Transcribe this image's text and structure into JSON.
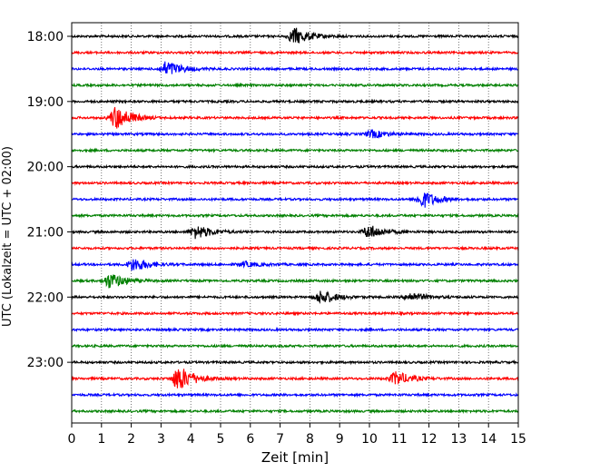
{
  "chart_data": {
    "type": "line",
    "title": "",
    "xlabel": "Zeit  [min]",
    "ylabel": "UTC (Lokalzeit = UTC + 02:00)",
    "xlim": [
      0,
      15
    ],
    "x_ticks": [
      "0",
      "1",
      "2",
      "3",
      "4",
      "5",
      "6",
      "7",
      "8",
      "9",
      "10",
      "11",
      "12",
      "13",
      "14",
      "15"
    ],
    "y_ticks": [
      "18:00",
      "19:00",
      "20:00",
      "21:00",
      "22:00",
      "23:00"
    ],
    "grid": "vertical dotted",
    "trace_interval_min": 15,
    "trace_colors": [
      "#000000",
      "#ff0000",
      "#0000ff",
      "#008000"
    ],
    "traces": [
      {
        "start": "18:00",
        "color": "#000000",
        "bursts": [
          {
            "t": 7.5,
            "amp": 1.0
          }
        ]
      },
      {
        "start": "18:15",
        "color": "#ff0000",
        "bursts": []
      },
      {
        "start": "18:30",
        "color": "#0000ff",
        "bursts": [
          {
            "t": 3.2,
            "amp": 0.9
          }
        ]
      },
      {
        "start": "18:45",
        "color": "#008000",
        "bursts": []
      },
      {
        "start": "19:00",
        "color": "#000000",
        "bursts": []
      },
      {
        "start": "19:15",
        "color": "#ff0000",
        "bursts": [
          {
            "t": 1.5,
            "amp": 1.4
          }
        ]
      },
      {
        "start": "19:30",
        "color": "#0000ff",
        "bursts": [
          {
            "t": 10.1,
            "amp": 0.45
          }
        ]
      },
      {
        "start": "19:45",
        "color": "#008000",
        "bursts": []
      },
      {
        "start": "20:00",
        "color": "#000000",
        "bursts": []
      },
      {
        "start": "20:15",
        "color": "#ff0000",
        "bursts": []
      },
      {
        "start": "20:30",
        "color": "#0000ff",
        "bursts": [
          {
            "t": 11.8,
            "amp": 1.0
          }
        ]
      },
      {
        "start": "20:45",
        "color": "#008000",
        "bursts": []
      },
      {
        "start": "21:00",
        "color": "#000000",
        "bursts": [
          {
            "t": 4.2,
            "amp": 0.8
          },
          {
            "t": 10.0,
            "amp": 0.8
          }
        ]
      },
      {
        "start": "21:15",
        "color": "#ff0000",
        "bursts": []
      },
      {
        "start": "21:30",
        "color": "#0000ff",
        "bursts": [
          {
            "t": 2.1,
            "amp": 0.8
          },
          {
            "t": 5.8,
            "amp": 0.3
          }
        ]
      },
      {
        "start": "21:45",
        "color": "#008000",
        "bursts": [
          {
            "t": 1.3,
            "amp": 0.9
          }
        ]
      },
      {
        "start": "22:00",
        "color": "#000000",
        "bursts": [
          {
            "t": 8.4,
            "amp": 0.8
          },
          {
            "t": 11.4,
            "amp": 0.5
          }
        ]
      },
      {
        "start": "22:15",
        "color": "#ff0000",
        "bursts": []
      },
      {
        "start": "22:30",
        "color": "#0000ff",
        "bursts": []
      },
      {
        "start": "22:45",
        "color": "#008000",
        "bursts": []
      },
      {
        "start": "23:00",
        "color": "#000000",
        "bursts": []
      },
      {
        "start": "23:15",
        "color": "#ff0000",
        "bursts": [
          {
            "t": 3.6,
            "amp": 1.5
          },
          {
            "t": 10.9,
            "amp": 0.8
          }
        ]
      },
      {
        "start": "23:30",
        "color": "#0000ff",
        "bursts": []
      },
      {
        "start": "23:45",
        "color": "#008000",
        "bursts": []
      }
    ]
  }
}
